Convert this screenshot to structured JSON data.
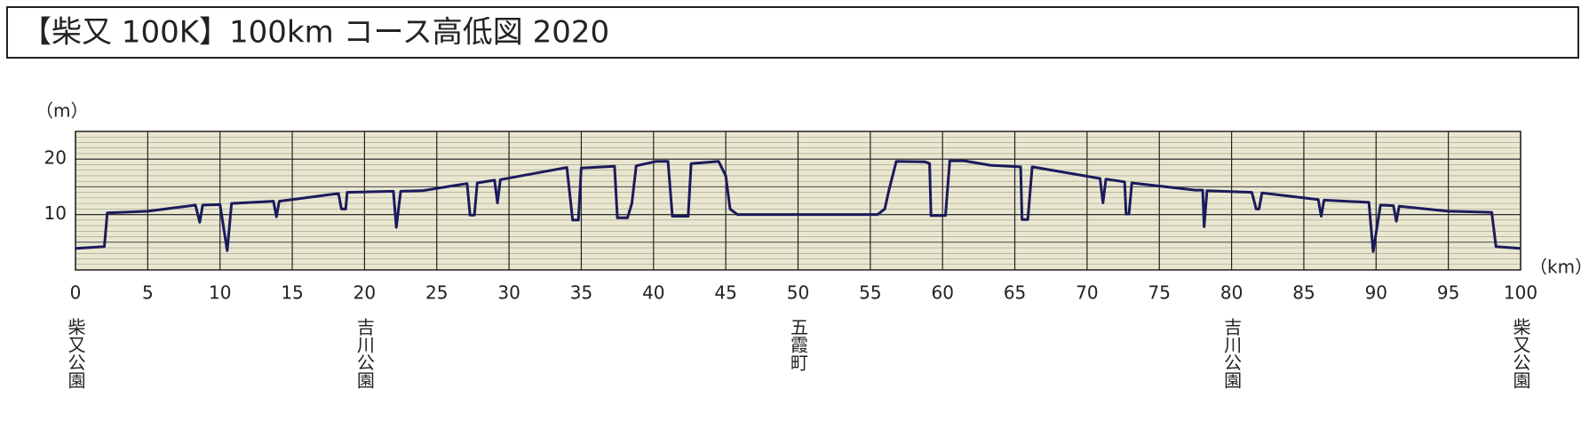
{
  "chart_data": {
    "type": "line",
    "title": "【柴又 100K】100km コース高低図 2020",
    "y_unit": "（m）",
    "x_unit": "（km）",
    "xlim": [
      0,
      100
    ],
    "xticks": [
      0,
      5,
      10,
      15,
      20,
      25,
      30,
      35,
      40,
      45,
      50,
      55,
      60,
      65,
      70,
      75,
      80,
      85,
      90,
      95,
      100
    ],
    "ylim": [
      0,
      25
    ],
    "yticks": [
      10,
      20
    ],
    "grid": true,
    "color": "#1b1a5c",
    "x": [
      0,
      2,
      2.2,
      5,
      8.3,
      8.6,
      8.8,
      10,
      10.5,
      10.8,
      13.7,
      13.9,
      14.1,
      18.2,
      18.4,
      18.7,
      18.8,
      22,
      22.2,
      22.5,
      24,
      27.1,
      27.3,
      27.6,
      27.8,
      29,
      29.2,
      29.4,
      34,
      34.4,
      34.8,
      35,
      37.3,
      37.5,
      38.2,
      38.5,
      38.8,
      40.2,
      41,
      41.3,
      42.4,
      42.6,
      44.5,
      45,
      45.3,
      45.8,
      55.5,
      56,
      56.3,
      56.8,
      58.8,
      59.1,
      59.2,
      60.2,
      60.5,
      61.5,
      63.3,
      65.4,
      65.5,
      65.9,
      66.2,
      70.9,
      71.1,
      71.3,
      72.6,
      72.7,
      72.9,
      73.1,
      77.5,
      78,
      78.1,
      78.3,
      81.4,
      81.7,
      81.9,
      82.1,
      86,
      86.2,
      86.4,
      89.5,
      89.8,
      90.3,
      91.2,
      91.4,
      91.6,
      95,
      98,
      98.3,
      100
    ],
    "values": [
      3.9,
      4.2,
      10.3,
      10.6,
      11.7,
      8.6,
      11.7,
      11.8,
      3.5,
      12,
      12.4,
      9.6,
      12.4,
      13.8,
      11,
      11,
      14,
      14.2,
      7.7,
      14.2,
      14.3,
      15.6,
      9.9,
      9.9,
      15.7,
      16.2,
      12.1,
      16.3,
      18.5,
      9,
      9,
      18.4,
      18.7,
      9.4,
      9.4,
      12,
      18.8,
      19.6,
      19.6,
      9.7,
      9.7,
      19.2,
      19.6,
      17,
      11,
      10,
      10,
      11,
      14.5,
      19.6,
      19.5,
      19.2,
      9.8,
      9.8,
      19.7,
      19.7,
      18.9,
      18.6,
      9.1,
      9.1,
      18.6,
      16.5,
      12.1,
      16.4,
      15.9,
      10.1,
      10.1,
      15.7,
      14.4,
      14.4,
      7.8,
      14.3,
      14,
      11,
      11,
      13.9,
      12.7,
      9.7,
      12.6,
      12.2,
      3.3,
      11.7,
      11.6,
      8.8,
      11.5,
      10.6,
      10.4,
      4.2,
      3.9
    ],
    "annotations": [
      {
        "x": 0,
        "label": "柴又公園"
      },
      {
        "x": 20,
        "label": "吉川公園"
      },
      {
        "x": 50,
        "label": "五霞町"
      },
      {
        "x": 80,
        "label": "吉川公園"
      },
      {
        "x": 100,
        "label": "柴又公園"
      }
    ]
  }
}
